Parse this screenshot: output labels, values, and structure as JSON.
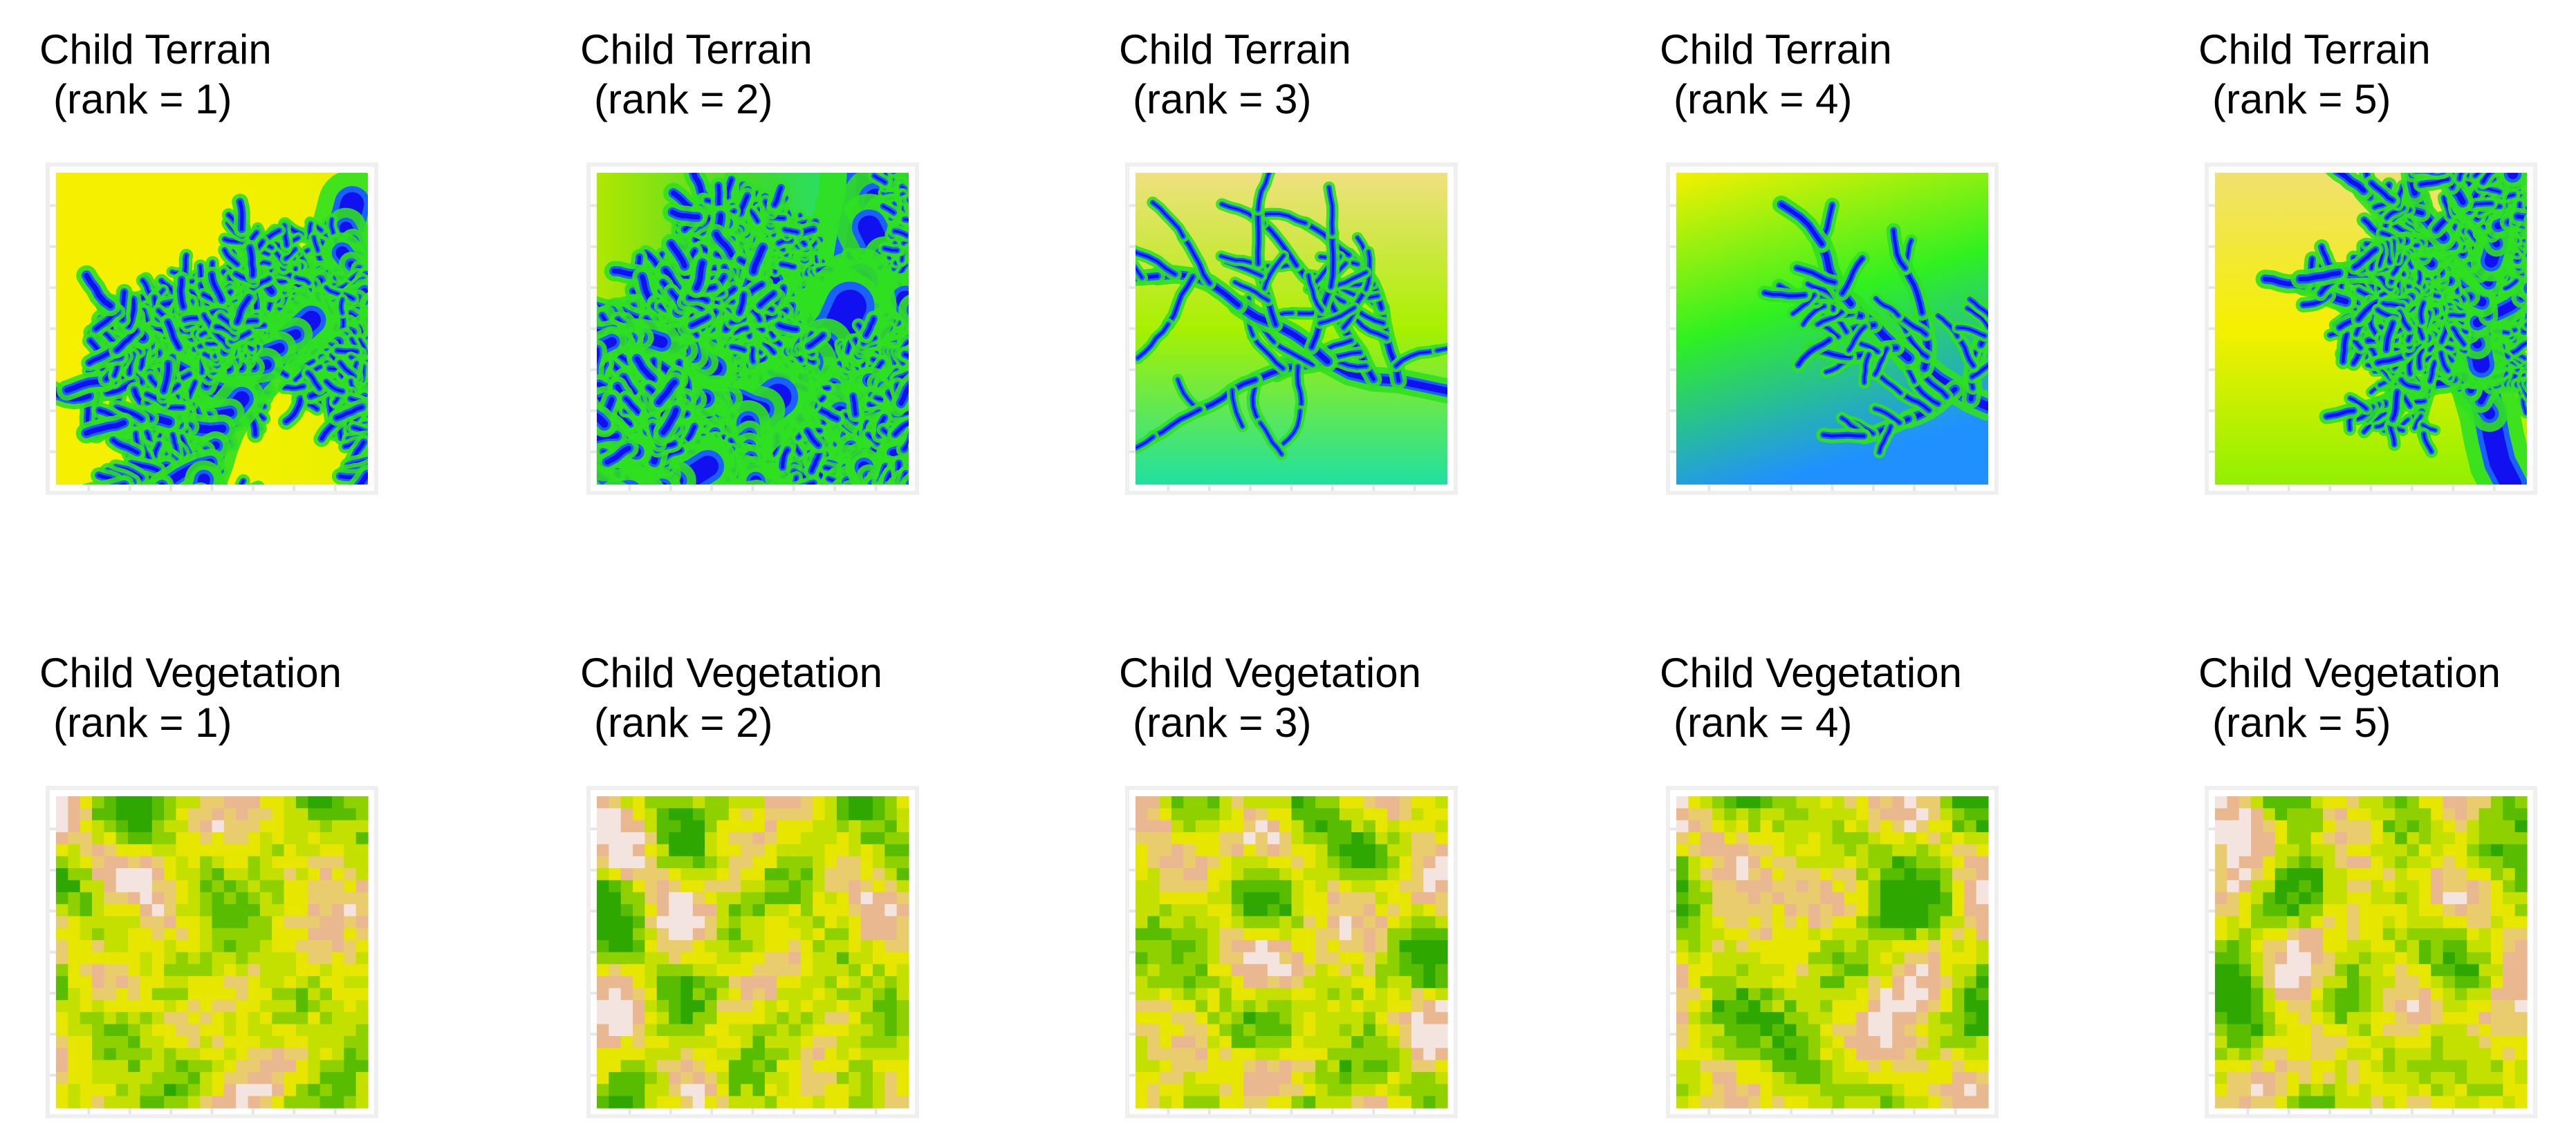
{
  "rows": [
    {
      "panels": [
        {
          "title": "Child Terrain",
          "rank_label": "(rank = 1)"
        },
        {
          "title": "Child Terrain",
          "rank_label": "(rank = 2)"
        },
        {
          "title": "Child Terrain",
          "rank_label": "(rank = 3)"
        },
        {
          "title": "Child Terrain",
          "rank_label": "(rank = 4)"
        },
        {
          "title": "Child Terrain",
          "rank_label": "(rank = 5)"
        }
      ]
    },
    {
      "panels": [
        {
          "title": "Child Vegetation",
          "rank_label": "(rank = 1)"
        },
        {
          "title": "Child Vegetation",
          "rank_label": "(rank = 2)"
        },
        {
          "title": "Child Vegetation",
          "rank_label": "(rank = 3)"
        },
        {
          "title": "Child Vegetation",
          "rank_label": "(rank = 4)"
        },
        {
          "title": "Child Vegetation",
          "rank_label": "(rank = 5)"
        }
      ]
    }
  ]
}
